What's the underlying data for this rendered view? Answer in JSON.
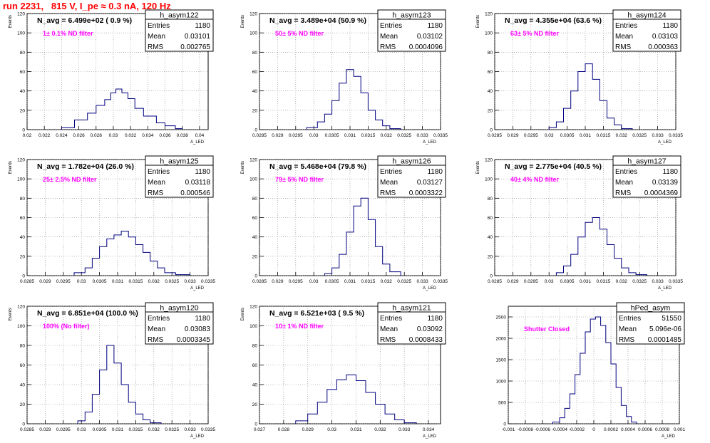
{
  "title": "run 2231,   815 V, I_pe ≈ 0.3 nA, 120 Hz",
  "colors": {
    "title": "#ff0000",
    "line": "#000080",
    "annotation": "#ff00ff",
    "grid": "#888888"
  },
  "chart_data": [
    {
      "type": "histogram",
      "name": "h_asym122",
      "stats": {
        "Entries": "1180",
        "Mean": "0.03101",
        "RMS": "0.002765"
      },
      "navg": "N_avg = 6.499e+02 ( 0.9 %)",
      "annotation": "1± 0.1% ND filter",
      "xlabel": "A_LED",
      "ylabel": "Events",
      "xlim": [
        0.02,
        0.041
      ],
      "ylim": [
        0,
        120
      ],
      "xticks": [
        0.02,
        0.022,
        0.024,
        0.026,
        0.028,
        0.03,
        0.032,
        0.034,
        0.036,
        0.038,
        0.04
      ],
      "xtick_labels": [
        "0.02",
        "0.022",
        "0.024",
        "0.026",
        "0.028",
        "0.03",
        "0.032",
        "0.034",
        "0.036",
        "0.038",
        "0.04"
      ],
      "yticks": [
        0,
        20,
        40,
        60,
        80,
        100,
        120
      ],
      "bin_edges": [
        0.024,
        0.0255,
        0.027,
        0.028,
        0.029,
        0.0297,
        0.0303,
        0.031,
        0.0317,
        0.0325,
        0.0335,
        0.035,
        0.036,
        0.0372,
        0.038
      ],
      "bin_values": [
        2,
        10,
        17,
        25,
        31,
        38,
        42,
        38,
        32,
        22,
        14,
        7,
        4,
        1
      ]
    },
    {
      "type": "histogram",
      "name": "h_asym123",
      "stats": {
        "Entries": "1180",
        "Mean": "0.03102",
        "RMS": "0.0004096"
      },
      "navg": "N_avg = 3.489e+04 (50.9 %)",
      "annotation": "50± 5% ND filter",
      "xlabel": "A_LED",
      "ylabel": "Events",
      "xlim": [
        0.0285,
        0.0335
      ],
      "ylim": [
        0,
        120
      ],
      "xticks": [
        0.0285,
        0.029,
        0.0295,
        0.03,
        0.0305,
        0.031,
        0.0315,
        0.032,
        0.0325,
        0.033,
        0.0335
      ],
      "xtick_labels": [
        "0.0285",
        "0.029",
        "0.0295",
        "0.03",
        "0.0305",
        "0.031",
        "0.0315",
        "0.032",
        "0.0325",
        "0.033",
        "0.0335"
      ],
      "yticks": [
        0,
        20,
        40,
        60,
        80,
        100,
        120
      ],
      "bin_edges": [
        0.0298,
        0.0301,
        0.0303,
        0.0305,
        0.0307,
        0.0309,
        0.0311,
        0.0313,
        0.0315,
        0.0317,
        0.0319,
        0.0321,
        0.0324
      ],
      "bin_values": [
        2,
        8,
        16,
        30,
        48,
        62,
        55,
        38,
        20,
        10,
        4,
        1
      ]
    },
    {
      "type": "histogram",
      "name": "h_asym124",
      "stats": {
        "Entries": "1180",
        "Mean": "0.03103",
        "RMS": "0.000363"
      },
      "navg": "N_avg = 4.355e+04 (63.6 %)",
      "annotation": "63± 5% ND filter",
      "xlabel": "A_LED",
      "ylabel": "Events",
      "xlim": [
        0.0285,
        0.0335
      ],
      "ylim": [
        0,
        120
      ],
      "xticks": [
        0.0285,
        0.029,
        0.0295,
        0.03,
        0.0305,
        0.031,
        0.0315,
        0.032,
        0.0325,
        0.033,
        0.0335
      ],
      "xtick_labels": [
        "0.0285",
        "0.029",
        "0.0295",
        "0.03",
        "0.0305",
        "0.031",
        "0.0315",
        "0.032",
        "0.0325",
        "0.033",
        "0.0335"
      ],
      "yticks": [
        0,
        20,
        40,
        60,
        80,
        100,
        120
      ],
      "bin_edges": [
        0.03,
        0.0302,
        0.0304,
        0.0306,
        0.0308,
        0.031,
        0.0312,
        0.0314,
        0.0316,
        0.0318,
        0.032,
        0.0323
      ],
      "bin_values": [
        2,
        8,
        22,
        40,
        60,
        68,
        52,
        30,
        12,
        5,
        1
      ]
    },
    {
      "type": "histogram",
      "name": "h_asym125",
      "stats": {
        "Entries": "1180",
        "Mean": "0.03118",
        "RMS": "0.000546"
      },
      "navg": "N_avg = 1.782e+04 (26.0 %)",
      "annotation": "25± 2.5% ND filter",
      "xlabel": "A_LED",
      "ylabel": "Events",
      "xlim": [
        0.0285,
        0.0335
      ],
      "ylim": [
        0,
        120
      ],
      "xticks": [
        0.0285,
        0.029,
        0.0295,
        0.03,
        0.0305,
        0.031,
        0.0315,
        0.032,
        0.0325,
        0.033,
        0.0335
      ],
      "xtick_labels": [
        "0.0285",
        "0.029",
        "0.0295",
        "0.03",
        "0.0305",
        "0.031",
        "0.0315",
        "0.032",
        "0.0325",
        "0.033",
        "0.0335"
      ],
      "yticks": [
        0,
        20,
        40,
        60,
        80,
        100,
        120
      ],
      "bin_edges": [
        0.0298,
        0.0301,
        0.0303,
        0.0305,
        0.0307,
        0.0309,
        0.0311,
        0.0313,
        0.0315,
        0.0317,
        0.0319,
        0.0321,
        0.0323,
        0.0326,
        0.033
      ],
      "bin_values": [
        3,
        8,
        18,
        30,
        38,
        42,
        46,
        40,
        32,
        24,
        15,
        8,
        3,
        1
      ]
    },
    {
      "type": "histogram",
      "name": "h_asym126",
      "stats": {
        "Entries": "1180",
        "Mean": "0.03127",
        "RMS": "0.0003322"
      },
      "navg": "N_avg = 5.468e+04 (79.8 %)",
      "annotation": "79± 5% ND filter",
      "xlabel": "A_LED",
      "ylabel": "Events",
      "xlim": [
        0.0285,
        0.0335
      ],
      "ylim": [
        0,
        120
      ],
      "xticks": [
        0.0285,
        0.029,
        0.0295,
        0.03,
        0.0305,
        0.031,
        0.0315,
        0.032,
        0.0325,
        0.033,
        0.0335
      ],
      "xtick_labels": [
        "0.0285",
        "0.029",
        "0.0295",
        "0.03",
        "0.0305",
        "0.031",
        "0.0315",
        "0.032",
        "0.0325",
        "0.033",
        "0.0335"
      ],
      "yticks": [
        0,
        20,
        40,
        60,
        80,
        100,
        120
      ],
      "bin_edges": [
        0.0303,
        0.0305,
        0.0307,
        0.0309,
        0.0311,
        0.0313,
        0.0315,
        0.0317,
        0.0319,
        0.0321,
        0.0324
      ],
      "bin_values": [
        2,
        8,
        22,
        45,
        72,
        80,
        58,
        30,
        12,
        4
      ]
    },
    {
      "type": "histogram",
      "name": "h_asym127",
      "stats": {
        "Entries": "1180",
        "Mean": "0.03139",
        "RMS": "0.0004369"
      },
      "navg": "N_avg = 2.775e+04 (40.5 %)",
      "annotation": "40± 4% ND filter",
      "xlabel": "A_LED",
      "ylabel": "Events",
      "xlim": [
        0.0285,
        0.0335
      ],
      "ylim": [
        0,
        120
      ],
      "xticks": [
        0.0285,
        0.029,
        0.0295,
        0.03,
        0.0305,
        0.031,
        0.0315,
        0.032,
        0.0325,
        0.033,
        0.0335
      ],
      "xtick_labels": [
        "0.0285",
        "0.029",
        "0.0295",
        "0.03",
        "0.0305",
        "0.031",
        "0.0315",
        "0.032",
        "0.0325",
        "0.033",
        "0.0335"
      ],
      "yticks": [
        0,
        20,
        40,
        60,
        80,
        100,
        120
      ],
      "bin_edges": [
        0.0302,
        0.0304,
        0.0306,
        0.0308,
        0.031,
        0.0312,
        0.0314,
        0.0316,
        0.0318,
        0.032,
        0.0322,
        0.0324,
        0.0327
      ],
      "bin_values": [
        3,
        10,
        22,
        40,
        55,
        60,
        48,
        32,
        18,
        8,
        3,
        1
      ]
    },
    {
      "type": "histogram",
      "name": "h_asym120",
      "stats": {
        "Entries": "1180",
        "Mean": "0.03083",
        "RMS": "0.0003345"
      },
      "navg": "N_avg = 6.851e+04 (100.0 %)",
      "annotation": "100% (No filter)",
      "xlabel": "A_LED",
      "ylabel": "Events",
      "xlim": [
        0.0285,
        0.0335
      ],
      "ylim": [
        0,
        120
      ],
      "xticks": [
        0.0285,
        0.029,
        0.0295,
        0.03,
        0.0305,
        0.031,
        0.0315,
        0.032,
        0.0325,
        0.033,
        0.0335
      ],
      "xtick_labels": [
        "0.0285",
        "0.029",
        "0.0295",
        "0.03",
        "0.0305",
        "0.031",
        "0.0315",
        "0.032",
        "0.0325",
        "0.033",
        "0.0335"
      ],
      "yticks": [
        0,
        20,
        40,
        60,
        80,
        100,
        120
      ],
      "bin_edges": [
        0.0299,
        0.0301,
        0.0303,
        0.0305,
        0.0307,
        0.0309,
        0.0311,
        0.0313,
        0.0315,
        0.0317,
        0.0319,
        0.0322
      ],
      "bin_values": [
        3,
        12,
        30,
        55,
        80,
        62,
        40,
        22,
        10,
        4,
        1
      ]
    },
    {
      "type": "histogram",
      "name": "h_asym121",
      "stats": {
        "Entries": "1180",
        "Mean": "0.03092",
        "RMS": "0.0008433"
      },
      "navg": "N_avg = 6.521e+03 ( 9.5 %)",
      "annotation": "10± 1% ND filter",
      "xlabel": "A_LED",
      "ylabel": "Events",
      "xlim": [
        0.027,
        0.0345
      ],
      "ylim": [
        0,
        120
      ],
      "xticks": [
        0.027,
        0.028,
        0.029,
        0.03,
        0.031,
        0.032,
        0.033,
        0.034
      ],
      "xtick_labels": [
        "0.027",
        "0.028",
        "0.029",
        "0.03",
        "0.031",
        "0.032",
        "0.033",
        "0.034"
      ],
      "yticks": [
        0,
        20,
        40,
        60,
        80,
        100,
        120
      ],
      "bin_edges": [
        0.0285,
        0.029,
        0.0294,
        0.0298,
        0.0302,
        0.0306,
        0.031,
        0.0314,
        0.0318,
        0.0322,
        0.0326,
        0.033,
        0.0335
      ],
      "bin_values": [
        3,
        10,
        22,
        35,
        45,
        50,
        44,
        32,
        20,
        10,
        4,
        1
      ]
    },
    {
      "type": "histogram",
      "name": "hPed_asym",
      "stats": {
        "Entries": "51550",
        "Mean": "5.096e-06",
        "RMS": "0.0001485"
      },
      "navg": "",
      "annotation": "Shutter Closed",
      "xlabel": "A_LED",
      "ylabel": "",
      "xlim": [
        -0.001,
        0.001
      ],
      "ylim": [
        0,
        2750
      ],
      "xticks": [
        -0.001,
        -0.0008,
        -0.0006,
        -0.0004,
        -0.0002,
        0,
        0.0002,
        0.0004,
        0.0006,
        0.0008,
        0.001
      ],
      "xtick_labels": [
        "-0.001",
        "-0.0008",
        "-0.0006",
        "-0.0004",
        "-0.0002",
        "0",
        "0.0002",
        "0.0004",
        "0.0006",
        "0.0008",
        "0.001"
      ],
      "yticks": [
        0,
        500,
        1000,
        1500,
        2000,
        2500
      ],
      "bin_edges": [
        -0.00048,
        -0.0004,
        -0.00034,
        -0.00028,
        -0.00022,
        -0.00016,
        -0.0001,
        -4e-05,
        2e-05,
        8e-05,
        0.00014,
        0.0002,
        0.00026,
        0.00032,
        0.00038,
        0.00044,
        0.0005
      ],
      "bin_values": [
        40,
        140,
        360,
        700,
        1150,
        1650,
        2150,
        2450,
        2500,
        2300,
        1900,
        1400,
        850,
        430,
        170,
        40
      ]
    }
  ]
}
